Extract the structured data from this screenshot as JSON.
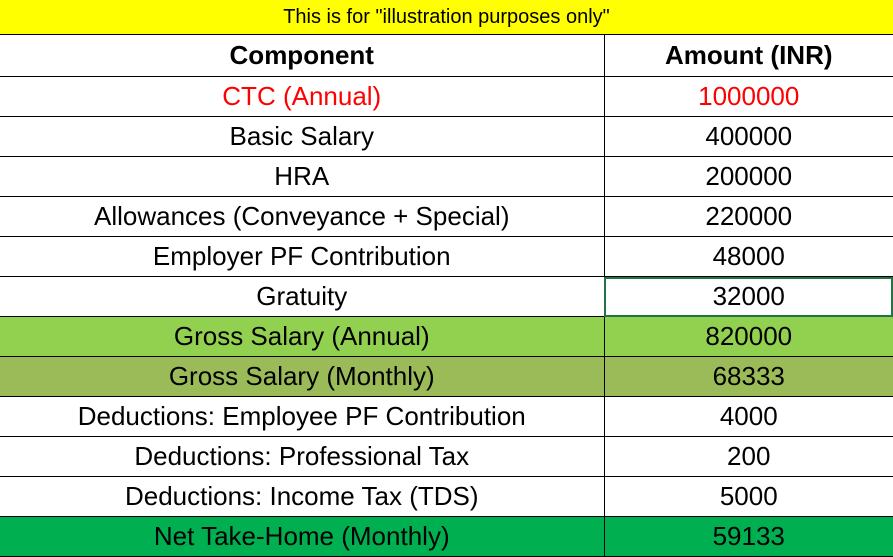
{
  "banner": {
    "text": "This is for \"illustration purposes only\"",
    "bg": "#ffff00"
  },
  "table": {
    "headers": [
      "Component",
      "Amount (INR)"
    ],
    "rows": [
      {
        "component": "CTC (Annual)",
        "amount": "1000000",
        "style": "red"
      },
      {
        "component": "Basic Salary",
        "amount": "400000",
        "style": ""
      },
      {
        "component": "HRA",
        "amount": "200000",
        "style": ""
      },
      {
        "component": "Allowances (Conveyance + Special)",
        "amount": "220000",
        "style": ""
      },
      {
        "component": "Employer PF Contribution",
        "amount": "48000",
        "style": ""
      },
      {
        "component": "Gratuity",
        "amount": "32000",
        "style": "",
        "selected": true
      },
      {
        "component": "Gross Salary (Annual)",
        "amount": "820000",
        "style": "g1"
      },
      {
        "component": "Gross Salary (Monthly)",
        "amount": "68333",
        "style": "g2"
      },
      {
        "component": "Deductions: Employee PF Contribution",
        "amount": "4000",
        "style": ""
      },
      {
        "component": "Deductions: Professional Tax",
        "amount": "200",
        "style": ""
      },
      {
        "component": "Deductions: Income Tax (TDS)",
        "amount": "5000",
        "style": ""
      },
      {
        "component": "Net Take-Home (Monthly)",
        "amount": "59133",
        "style": "g3"
      }
    ]
  },
  "colors": {
    "highlight_red": "#ff0000",
    "gross_annual_bg": "#92d050",
    "gross_monthly_bg": "#9bbb59",
    "net_bg": "#00b050",
    "selection_border": "#217346"
  }
}
